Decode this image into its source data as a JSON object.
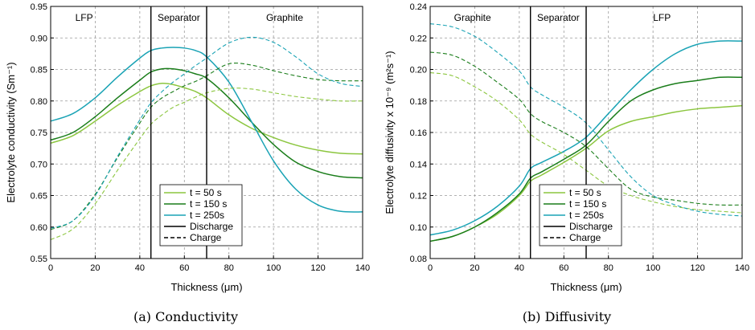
{
  "chart_data": [
    {
      "type": "line",
      "panel": "a",
      "caption": "(a)  Conductivity",
      "xlabel": "Thickness (μm)",
      "ylabel": "Electrolyte conductivity (Sm⁻¹)",
      "xlim": [
        0,
        140
      ],
      "ylim": [
        0.55,
        0.95
      ],
      "xticks": [
        0,
        20,
        40,
        60,
        80,
        100,
        120,
        140
      ],
      "yticks": [
        0.55,
        0.6,
        0.65,
        0.7,
        0.75,
        0.8,
        0.85,
        0.9,
        0.95
      ],
      "ytick_labels": [
        "0.55",
        "0.60",
        "0.65",
        "0.70",
        "0.75",
        "0.80",
        "0.85",
        "0.90",
        "0.95"
      ],
      "grid": true,
      "boundaries": [
        45,
        70
      ],
      "regions": [
        {
          "label": "LFP",
          "x": 15
        },
        {
          "label": "Separator",
          "x": 57.5
        },
        {
          "label": "Graphite",
          "x": 105
        }
      ],
      "legend": {
        "placement": "bottom-center",
        "entries": [
          {
            "label": "t = 50 s",
            "color": "#8cc63f",
            "style": "solid"
          },
          {
            "label": "t = 150 s",
            "color": "#1a7d1a",
            "style": "solid"
          },
          {
            "label": "t = 250s",
            "color": "#1aa3b5",
            "style": "solid"
          },
          {
            "label": "Discharge",
            "color": "#000000",
            "style": "solid"
          },
          {
            "label": "Charge",
            "color": "#000000",
            "style": "dashed"
          }
        ]
      },
      "series": [
        {
          "name": "t = 50 s",
          "mode": "Discharge",
          "color": "#8cc63f",
          "dash": false,
          "x": [
            0,
            10,
            20,
            30,
            40,
            45,
            50,
            55,
            60,
            65,
            70,
            80,
            90,
            100,
            110,
            120,
            130,
            140
          ],
          "y": [
            0.733,
            0.745,
            0.768,
            0.793,
            0.815,
            0.824,
            0.828,
            0.826,
            0.821,
            0.815,
            0.805,
            0.778,
            0.757,
            0.742,
            0.73,
            0.722,
            0.717,
            0.716
          ]
        },
        {
          "name": "t = 150 s",
          "mode": "Discharge",
          "color": "#1a7d1a",
          "dash": false,
          "x": [
            0,
            10,
            20,
            30,
            40,
            45,
            50,
            55,
            60,
            65,
            70,
            80,
            90,
            100,
            110,
            120,
            130,
            140
          ],
          "y": [
            0.738,
            0.75,
            0.775,
            0.805,
            0.833,
            0.846,
            0.851,
            0.851,
            0.848,
            0.843,
            0.836,
            0.805,
            0.767,
            0.731,
            0.703,
            0.688,
            0.68,
            0.678
          ]
        },
        {
          "name": "t = 250s",
          "mode": "Discharge",
          "color": "#1aa3b5",
          "dash": false,
          "x": [
            0,
            10,
            20,
            30,
            40,
            45,
            50,
            55,
            60,
            65,
            70,
            80,
            90,
            100,
            110,
            120,
            130,
            140
          ],
          "y": [
            0.768,
            0.78,
            0.805,
            0.838,
            0.868,
            0.88,
            0.884,
            0.885,
            0.884,
            0.88,
            0.87,
            0.83,
            0.768,
            0.705,
            0.66,
            0.635,
            0.625,
            0.624
          ]
        },
        {
          "name": "t = 50 s",
          "mode": "Charge",
          "color": "#8cc63f",
          "dash": true,
          "x": [
            0,
            10,
            20,
            30,
            40,
            45,
            50,
            55,
            60,
            65,
            70,
            80,
            90,
            100,
            110,
            120,
            130,
            140
          ],
          "y": [
            0.58,
            0.597,
            0.637,
            0.69,
            0.74,
            0.763,
            0.778,
            0.79,
            0.798,
            0.806,
            0.813,
            0.82,
            0.819,
            0.813,
            0.807,
            0.803,
            0.8,
            0.8
          ]
        },
        {
          "name": "t = 150 s",
          "mode": "Charge",
          "color": "#1a7d1a",
          "dash": true,
          "x": [
            0,
            10,
            20,
            30,
            40,
            45,
            50,
            55,
            60,
            65,
            70,
            80,
            90,
            100,
            110,
            120,
            130,
            140
          ],
          "y": [
            0.596,
            0.61,
            0.652,
            0.71,
            0.765,
            0.79,
            0.805,
            0.815,
            0.824,
            0.831,
            0.84,
            0.859,
            0.857,
            0.848,
            0.84,
            0.834,
            0.832,
            0.832
          ]
        },
        {
          "name": "t = 250s",
          "mode": "Charge",
          "color": "#1aa3b5",
          "dash": true,
          "x": [
            0,
            10,
            20,
            30,
            40,
            45,
            50,
            55,
            60,
            65,
            70,
            80,
            90,
            100,
            110,
            120,
            130,
            140
          ],
          "y": [
            0.598,
            0.61,
            0.65,
            0.712,
            0.77,
            0.797,
            0.815,
            0.83,
            0.843,
            0.856,
            0.868,
            0.892,
            0.901,
            0.893,
            0.87,
            0.843,
            0.828,
            0.823
          ]
        }
      ]
    },
    {
      "type": "line",
      "panel": "b",
      "caption": "(b)  Diffusivity",
      "xlabel": "Thickness (μm)",
      "ylabel": "Electrolyte diffusivity x 10⁻⁹ (m²s⁻¹)",
      "xlim": [
        0,
        140
      ],
      "ylim": [
        0.08,
        0.24
      ],
      "xticks": [
        0,
        20,
        40,
        60,
        80,
        100,
        120,
        140
      ],
      "yticks": [
        0.08,
        0.1,
        0.12,
        0.14,
        0.16,
        0.18,
        0.2,
        0.22,
        0.24
      ],
      "ytick_labels": [
        "0.08",
        "0.10",
        "0.12",
        "0.14",
        "0.16",
        "0.18",
        "0.20",
        "0.22",
        "0.24"
      ],
      "grid": true,
      "boundaries": [
        45,
        70
      ],
      "regions": [
        {
          "label": "Graphite",
          "x": 19
        },
        {
          "label": "Separator",
          "x": 57.5
        },
        {
          "label": "LFP",
          "x": 104
        }
      ],
      "legend": {
        "placement": "bottom-center",
        "entries": [
          {
            "label": "t = 50 s",
            "color": "#8cc63f",
            "style": "solid"
          },
          {
            "label": "t = 150 s",
            "color": "#1a7d1a",
            "style": "solid"
          },
          {
            "label": "t = 250s",
            "color": "#1aa3b5",
            "style": "solid"
          },
          {
            "label": "Discharge",
            "color": "#000000",
            "style": "solid"
          },
          {
            "label": "Charge",
            "color": "#000000",
            "style": "dashed"
          }
        ]
      },
      "series": [
        {
          "name": "t = 50 s",
          "mode": "Discharge",
          "color": "#8cc63f",
          "dash": false,
          "x": [
            0,
            10,
            20,
            30,
            40,
            45,
            50,
            60,
            70,
            80,
            90,
            100,
            110,
            120,
            130,
            140
          ],
          "y": [
            0.091,
            0.094,
            0.1,
            0.108,
            0.12,
            0.129,
            0.133,
            0.141,
            0.15,
            0.161,
            0.167,
            0.17,
            0.173,
            0.175,
            0.176,
            0.177
          ]
        },
        {
          "name": "t = 150 s",
          "mode": "Discharge",
          "color": "#1a7d1a",
          "dash": false,
          "x": [
            0,
            10,
            20,
            30,
            40,
            45,
            50,
            60,
            70,
            80,
            90,
            100,
            110,
            120,
            130,
            140
          ],
          "y": [
            0.091,
            0.094,
            0.1,
            0.109,
            0.121,
            0.131,
            0.135,
            0.143,
            0.152,
            0.167,
            0.18,
            0.187,
            0.191,
            0.193,
            0.195,
            0.195
          ]
        },
        {
          "name": "t = 250s",
          "mode": "Discharge",
          "color": "#1aa3b5",
          "dash": false,
          "x": [
            0,
            10,
            20,
            30,
            40,
            45,
            50,
            60,
            70,
            80,
            90,
            100,
            110,
            120,
            130,
            140
          ],
          "y": [
            0.095,
            0.098,
            0.104,
            0.113,
            0.126,
            0.137,
            0.141,
            0.148,
            0.157,
            0.172,
            0.187,
            0.2,
            0.21,
            0.216,
            0.218,
            0.218
          ]
        },
        {
          "name": "t = 50 s",
          "mode": "Charge",
          "color": "#8cc63f",
          "dash": true,
          "x": [
            0,
            10,
            20,
            30,
            40,
            45,
            50,
            60,
            70,
            80,
            90,
            100,
            110,
            120,
            130,
            140
          ],
          "y": [
            0.198,
            0.196,
            0.189,
            0.18,
            0.168,
            0.159,
            0.154,
            0.146,
            0.136,
            0.126,
            0.12,
            0.116,
            0.113,
            0.111,
            0.11,
            0.109
          ]
        },
        {
          "name": "t = 150 s",
          "mode": "Charge",
          "color": "#1a7d1a",
          "dash": true,
          "x": [
            0,
            10,
            20,
            30,
            40,
            45,
            50,
            60,
            70,
            80,
            90,
            100,
            110,
            120,
            130,
            140
          ],
          "y": [
            0.211,
            0.209,
            0.202,
            0.192,
            0.181,
            0.172,
            0.167,
            0.16,
            0.151,
            0.137,
            0.124,
            0.119,
            0.117,
            0.115,
            0.114,
            0.114
          ]
        },
        {
          "name": "t = 250s",
          "mode": "Charge",
          "color": "#1aa3b5",
          "dash": true,
          "x": [
            0,
            10,
            20,
            30,
            40,
            45,
            50,
            60,
            70,
            80,
            90,
            100,
            110,
            120,
            130,
            140
          ],
          "y": [
            0.229,
            0.227,
            0.221,
            0.211,
            0.199,
            0.189,
            0.184,
            0.176,
            0.166,
            0.149,
            0.132,
            0.12,
            0.114,
            0.11,
            0.108,
            0.107
          ]
        }
      ]
    }
  ]
}
